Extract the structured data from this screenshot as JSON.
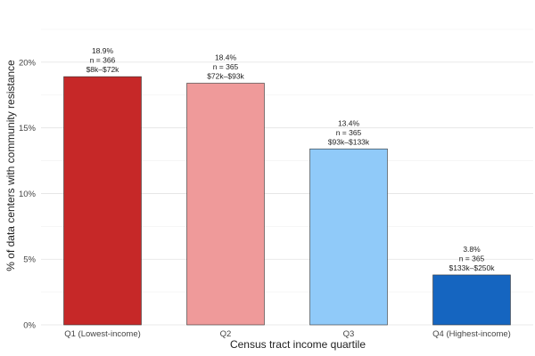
{
  "chart_data": {
    "type": "bar",
    "title": "",
    "xlabel": "Census tract income quartile",
    "ylabel": "% of data centers with community resistance",
    "categories": [
      "Q1 (Lowest-income)",
      "Q2",
      "Q3",
      "Q4 (Highest-income)"
    ],
    "values": [
      18.9,
      18.4,
      13.4,
      3.8
    ],
    "bar_labels": [
      [
        "18.9%",
        "n = 366",
        "$8k–$72k"
      ],
      [
        "18.4%",
        "n = 365",
        "$72k–$93k"
      ],
      [
        "13.4%",
        "n = 365",
        "$93k–$133k"
      ],
      [
        "3.8%",
        "n = 365",
        "$133k–$250k"
      ]
    ],
    "colors": [
      "#c62828",
      "#ef9a9a",
      "#90caf9",
      "#1565c0"
    ],
    "ylim": [
      0,
      22.5
    ],
    "yticks": [
      0,
      5,
      10,
      15,
      20
    ],
    "ytick_labels": [
      "0%",
      "5%",
      "10%",
      "15%",
      "20%"
    ],
    "grid": true,
    "legend": "none"
  }
}
